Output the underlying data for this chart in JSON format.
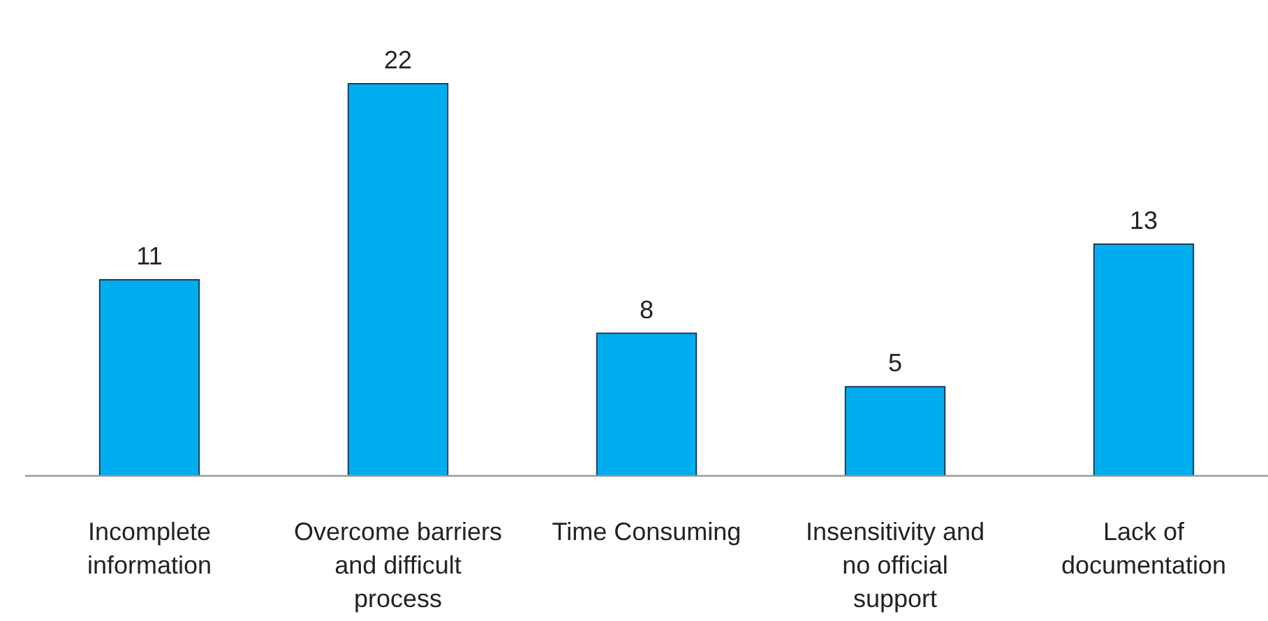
{
  "chart_data": {
    "type": "bar",
    "categories": [
      "Incomplete information",
      "Overcome barriers and difficult process",
      "Time Consuming",
      "Insensitivity and no official support",
      "Lack of documentation"
    ],
    "values": [
      11,
      22,
      8,
      5,
      13
    ],
    "color": "#00aeef",
    "data_labels": true
  }
}
